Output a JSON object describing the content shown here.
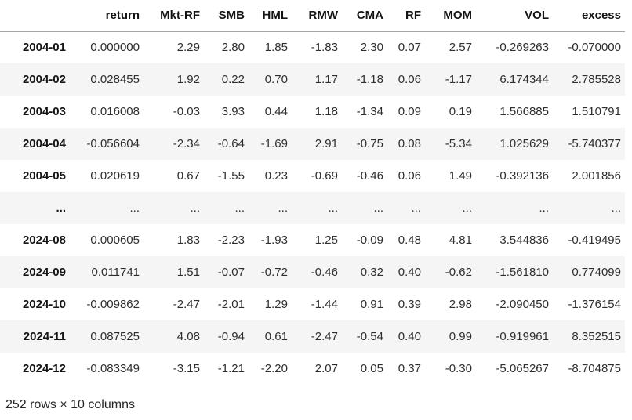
{
  "table": {
    "columns": [
      "",
      "return",
      "Mkt-RF",
      "SMB",
      "HML",
      "RMW",
      "CMA",
      "RF",
      "MOM",
      "VOL",
      "excess"
    ],
    "rows": [
      {
        "index": "2004-01",
        "cells": [
          "0.000000",
          "2.29",
          "2.80",
          "1.85",
          "-1.83",
          "2.30",
          "0.07",
          "2.57",
          "-0.269263",
          "-0.070000"
        ]
      },
      {
        "index": "2004-02",
        "cells": [
          "0.028455",
          "1.92",
          "0.22",
          "0.70",
          "1.17",
          "-1.18",
          "0.06",
          "-1.17",
          "6.174344",
          "2.785528"
        ]
      },
      {
        "index": "2004-03",
        "cells": [
          "0.016008",
          "-0.03",
          "3.93",
          "0.44",
          "1.18",
          "-1.34",
          "0.09",
          "0.19",
          "1.566885",
          "1.510791"
        ]
      },
      {
        "index": "2004-04",
        "cells": [
          "-0.056604",
          "-2.34",
          "-0.64",
          "-1.69",
          "2.91",
          "-0.75",
          "0.08",
          "-5.34",
          "1.025629",
          "-5.740377"
        ]
      },
      {
        "index": "2004-05",
        "cells": [
          "0.020619",
          "0.67",
          "-1.55",
          "0.23",
          "-0.69",
          "-0.46",
          "0.06",
          "1.49",
          "-0.392136",
          "2.001856"
        ]
      },
      {
        "index": "...",
        "cells": [
          "...",
          "...",
          "...",
          "...",
          "...",
          "...",
          "...",
          "...",
          "...",
          "..."
        ]
      },
      {
        "index": "2024-08",
        "cells": [
          "0.000605",
          "1.83",
          "-2.23",
          "-1.93",
          "1.25",
          "-0.09",
          "0.48",
          "4.81",
          "3.544836",
          "-0.419495"
        ]
      },
      {
        "index": "2024-09",
        "cells": [
          "0.011741",
          "1.51",
          "-0.07",
          "-0.72",
          "-0.46",
          "0.32",
          "0.40",
          "-0.62",
          "-1.561810",
          "0.774099"
        ]
      },
      {
        "index": "2024-10",
        "cells": [
          "-0.009862",
          "-2.47",
          "-2.01",
          "1.29",
          "-1.44",
          "0.91",
          "0.39",
          "2.98",
          "-2.090450",
          "-1.376154"
        ]
      },
      {
        "index": "2024-11",
        "cells": [
          "0.087525",
          "4.08",
          "-0.94",
          "0.61",
          "-2.47",
          "-0.54",
          "0.40",
          "0.99",
          "-0.919961",
          "8.352515"
        ]
      },
      {
        "index": "2024-12",
        "cells": [
          "-0.083349",
          "-3.15",
          "-1.21",
          "-2.20",
          "2.07",
          "0.05",
          "0.37",
          "-0.30",
          "-5.065267",
          "-8.704875"
        ]
      }
    ]
  },
  "footer": {
    "shape_summary": "252 rows × 10 columns"
  },
  "colors": {
    "row_stripe": "#f5f5f5",
    "header_border": "#a6a6a6",
    "header_text": "#141414",
    "cell_text": "#2e2e2e",
    "background": "#ffffff"
  }
}
